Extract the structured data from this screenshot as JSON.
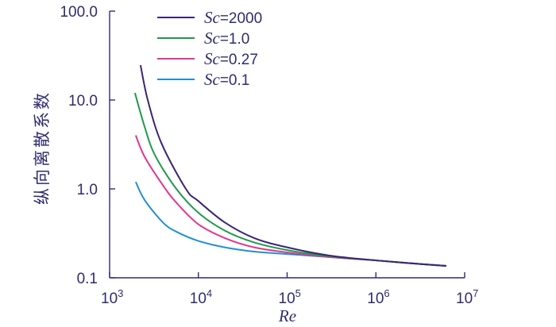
{
  "colors": {
    "axis": "#2f2c6e"
  },
  "chart_data": {
    "type": "line",
    "xlabel": "Re",
    "ylabel": "纵向离散系数",
    "xscale": "log",
    "yscale": "log",
    "xlim": [
      1000,
      10000000
    ],
    "ylim": [
      0.1,
      100
    ],
    "grid": false,
    "legend": {
      "position": "top-left"
    },
    "x_ticks": [
      {
        "value": 1000,
        "base": "10",
        "exp": "3"
      },
      {
        "value": 10000,
        "base": "10",
        "exp": "4"
      },
      {
        "value": 100000,
        "base": "10",
        "exp": "5"
      },
      {
        "value": 1000000,
        "base": "10",
        "exp": "6"
      },
      {
        "value": 10000000,
        "base": "10",
        "exp": "7"
      }
    ],
    "y_ticks": [
      {
        "value": 100,
        "label": "100.0"
      },
      {
        "value": 10,
        "label": "10.0"
      },
      {
        "value": 1,
        "label": "1.0"
      },
      {
        "value": 0.1,
        "label": "0.1"
      }
    ],
    "series": [
      {
        "name": "Sc=2000",
        "color": "#3c2476",
        "points": [
          [
            2230,
            24.7
          ],
          [
            2690,
            10.0
          ],
          [
            3820,
            3.3
          ],
          [
            7230,
            1.0
          ],
          [
            10000,
            0.73
          ],
          [
            19800,
            0.42
          ],
          [
            42500,
            0.28
          ],
          [
            100000,
            0.22
          ],
          [
            300000,
            0.178
          ],
          [
            1000000,
            0.157
          ],
          [
            2600000,
            0.145
          ],
          [
            6200000,
            0.136
          ]
        ]
      },
      {
        "name": "Sc=1.0",
        "color": "#1f9a4b",
        "points": [
          [
            1930,
            12.0
          ],
          [
            2480,
            5.0
          ],
          [
            3240,
            2.4
          ],
          [
            5650,
            1.0
          ],
          [
            10000,
            0.54
          ],
          [
            19800,
            0.34
          ],
          [
            42500,
            0.25
          ],
          [
            100000,
            0.205
          ],
          [
            300000,
            0.174
          ],
          [
            1000000,
            0.157
          ],
          [
            2600000,
            0.145
          ],
          [
            6200000,
            0.136
          ]
        ]
      },
      {
        "name": "Sc=0.27",
        "color": "#e1368f",
        "points": [
          [
            1970,
            4.0
          ],
          [
            2480,
            2.3
          ],
          [
            3980,
            1.1
          ],
          [
            5650,
            0.7
          ],
          [
            10000,
            0.4
          ],
          [
            19800,
            0.28
          ],
          [
            42500,
            0.22
          ],
          [
            100000,
            0.193
          ],
          [
            300000,
            0.171
          ],
          [
            1000000,
            0.157
          ],
          [
            2600000,
            0.145
          ],
          [
            6200000,
            0.136
          ]
        ]
      },
      {
        "name": "Sc=0.1",
        "color": "#2290cf",
        "points": [
          [
            1970,
            1.2
          ],
          [
            2480,
            0.75
          ],
          [
            3980,
            0.42
          ],
          [
            5650,
            0.33
          ],
          [
            10000,
            0.26
          ],
          [
            19800,
            0.22
          ],
          [
            42500,
            0.197
          ],
          [
            100000,
            0.185
          ],
          [
            300000,
            0.171
          ],
          [
            1000000,
            0.157
          ],
          [
            2600000,
            0.145
          ],
          [
            6200000,
            0.136
          ]
        ]
      }
    ]
  }
}
